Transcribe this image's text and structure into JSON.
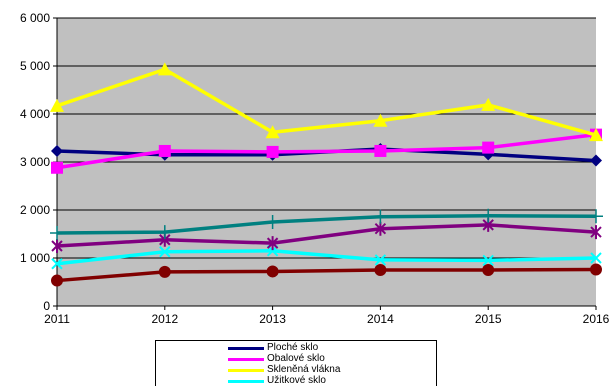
{
  "chart_data": {
    "type": "line",
    "x": [
      "2011",
      "2012",
      "2013",
      "2014",
      "2015",
      "2016"
    ],
    "ylim": [
      0,
      6000
    ],
    "yticks": [
      "0",
      "1 000",
      "2 000",
      "3 000",
      "4 000",
      "5 000",
      "6 000"
    ],
    "ytick_values": [
      0,
      1000,
      2000,
      3000,
      4000,
      5000,
      6000
    ],
    "grid": true,
    "plot_background": "#c0c0c0",
    "legend_position": "bottom",
    "series": [
      {
        "name": "Ploché sklo",
        "color": "#000080",
        "marker": "diamond",
        "values": [
          3230,
          3150,
          3150,
          3270,
          3160,
          3030
        ]
      },
      {
        "name": "Obalové sklo",
        "color": "#ff00ff",
        "marker": "square",
        "values": [
          2880,
          3230,
          3210,
          3230,
          3300,
          3570
        ]
      },
      {
        "name": "Skleněná vlákna",
        "color": "#ffff00",
        "marker": "triangle",
        "values": [
          4170,
          4930,
          3620,
          3860,
          4190,
          3560
        ]
      },
      {
        "name": "Užitkové sklo",
        "color": "#00ffff",
        "marker": "x",
        "values": [
          880,
          1130,
          1150,
          960,
          950,
          1000
        ]
      },
      {
        "name": "",
        "color": "#800080",
        "marker": "star",
        "values": [
          1250,
          1380,
          1310,
          1610,
          1690,
          1540
        ]
      },
      {
        "name": "",
        "color": "#800000",
        "marker": "circle",
        "values": [
          530,
          710,
          720,
          750,
          750,
          760
        ]
      },
      {
        "name": "",
        "color": "#008080",
        "marker": "plus",
        "values": [
          1520,
          1540,
          1750,
          1860,
          1880,
          1870
        ]
      }
    ]
  }
}
